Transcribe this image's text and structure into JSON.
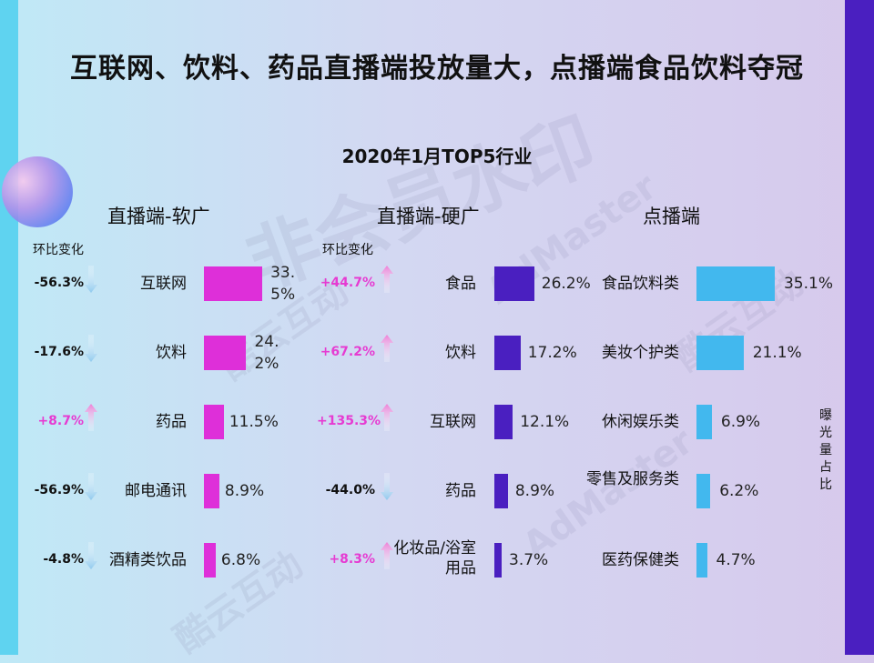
{
  "title": "互联网、饮料、药品直播端投放量大，点播端食品饮料夺冠",
  "subtitle": "2020年1月TOP5行业",
  "side_label": "曝光量占比",
  "watermarks": [
    "AdMaster",
    "酷云互动",
    "非会员水印"
  ],
  "colors": {
    "soft": "#de2fd9",
    "hard": "#4a1fc0",
    "vod": "#42b8ee",
    "pos": "#e63bd2",
    "neg": "#111111",
    "up_arrow": "#ef7fd6",
    "down_arrow": "#8fc9ee"
  },
  "chart_data": [
    {
      "type": "bar",
      "title": "直播端-软广",
      "change_label": "环比变化",
      "categories": [
        "互联网",
        "饮料",
        "药品",
        "邮电通讯",
        "酒精类饮品"
      ],
      "values": [
        33.5,
        24.2,
        11.5,
        8.9,
        6.8
      ],
      "value_labels": [
        "33.5%",
        "24.2%",
        "11.5%",
        "8.9%",
        "6.8%"
      ],
      "changes": [
        "-56.3%",
        "-17.6%",
        "+8.7%",
        "-56.9%",
        "-4.8%"
      ]
    },
    {
      "type": "bar",
      "title": "直播端-硬广",
      "change_label": "环比变化",
      "categories": [
        "食品",
        "饮料",
        "互联网",
        "药品",
        "化妆品/浴室用品"
      ],
      "values": [
        26.2,
        17.2,
        12.1,
        8.9,
        3.7
      ],
      "value_labels": [
        "26.2%",
        "17.2%",
        "12.1%",
        "8.9%",
        "3.7%"
      ],
      "changes": [
        "+44.7%",
        "+67.2%",
        "+135.3%",
        "-44.0%",
        "+8.3%"
      ]
    },
    {
      "type": "bar",
      "title": "点播端",
      "categories": [
        "食品饮料类",
        "美妆个护类",
        "休闲娱乐类",
        "零售及服务类",
        "医药保健类"
      ],
      "values": [
        35.1,
        21.1,
        6.9,
        6.2,
        4.7
      ],
      "value_labels": [
        "35.1%",
        "21.1%",
        "6.9%",
        "6.2%",
        "4.7%"
      ]
    }
  ]
}
